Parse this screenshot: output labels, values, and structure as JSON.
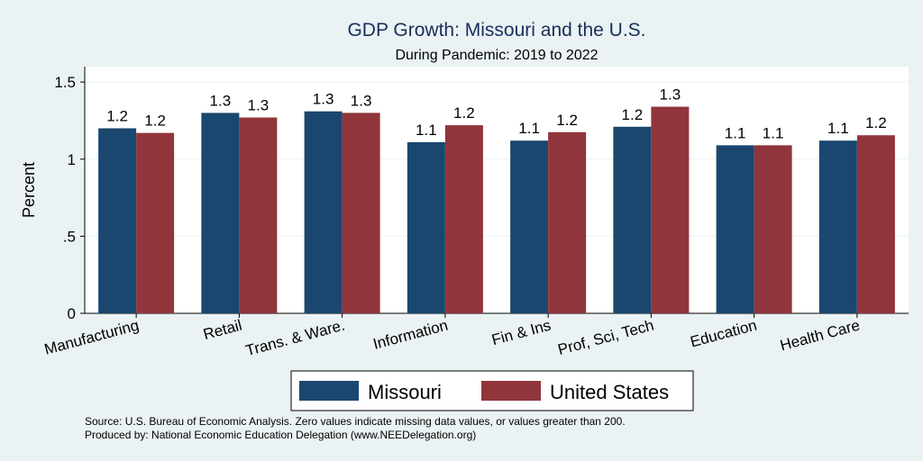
{
  "chart_data": {
    "type": "bar",
    "title": "GDP Growth: Missouri and the U.S.",
    "subtitle": "During Pandemic: 2019 to 2022",
    "ylabel": "Percent",
    "xlabel": "",
    "ylim": [
      0,
      1.6
    ],
    "yticks": [
      0,
      0.5,
      1,
      1.5
    ],
    "ytick_labels": [
      "0",
      ".5",
      "1",
      "1.5"
    ],
    "categories": [
      "Manufacturing",
      "Retail",
      "Trans. & Ware.",
      "Information",
      "Fin & Ins",
      "Prof, Sci, Tech",
      "Education",
      "Health Care"
    ],
    "series": [
      {
        "name": "Missouri",
        "color": "#1a476f",
        "values": [
          1.2,
          1.3,
          1.31,
          1.11,
          1.12,
          1.21,
          1.09,
          1.12
        ],
        "labels": [
          "1.2",
          "1.3",
          "1.3",
          "1.1",
          "1.1",
          "1.2",
          "1.1",
          "1.1"
        ]
      },
      {
        "name": "United States",
        "color": "#90353b",
        "values": [
          1.17,
          1.27,
          1.3,
          1.22,
          1.175,
          1.34,
          1.09,
          1.155
        ],
        "labels": [
          "1.2",
          "1.3",
          "1.3",
          "1.2",
          "1.2",
          "1.3",
          "1.1",
          "1.2"
        ]
      }
    ],
    "legend_position": "bottom",
    "grid": true
  },
  "notes": {
    "source": "Source: U.S. Bureau of Economic Analysis. Zero values indicate missing data values, or values greater than 200.",
    "produced_by": "Produced by: National Economic Education Delegation (www.NEEDelegation.org)"
  }
}
